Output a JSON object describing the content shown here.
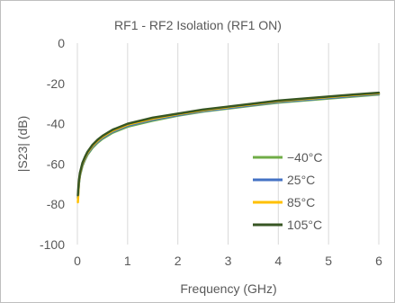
{
  "chart_data": {
    "type": "line",
    "title": "RF1 - RF2 Isolation (RF1 ON)",
    "xlabel": "Frequency (GHz)",
    "ylabel": "|S23| (dB)",
    "xlim": [
      0,
      6
    ],
    "ylim": [
      -100,
      0
    ],
    "xticks": [
      0,
      1,
      2,
      3,
      4,
      5,
      6
    ],
    "yticks": [
      0,
      -20,
      -40,
      -60,
      -80,
      -100
    ],
    "grid": "vertical",
    "legend_position": "bottom-right-inside",
    "series": [
      {
        "name": "−40°C",
        "color": "#70ad47",
        "x": [
          0.01,
          0.03,
          0.05,
          0.1,
          0.15,
          0.2,
          0.3,
          0.4,
          0.5,
          0.7,
          1.0,
          1.5,
          2.0,
          2.5,
          3.0,
          3.5,
          4.0,
          4.5,
          5.0,
          5.5,
          6.0
        ],
        "y": [
          -77,
          -70,
          -66,
          -61,
          -58,
          -55.5,
          -52,
          -49.5,
          -47.5,
          -44.5,
          -41.5,
          -38.5,
          -36,
          -34,
          -32.5,
          -31,
          -29.5,
          -28.5,
          -27.5,
          -26.5,
          -25.5
        ]
      },
      {
        "name": "25°C",
        "color": "#4472c4",
        "x": [
          0.01,
          0.03,
          0.05,
          0.1,
          0.15,
          0.2,
          0.3,
          0.4,
          0.5,
          0.7,
          1.0,
          1.5,
          2.0,
          2.5,
          3.0,
          3.5,
          4.0,
          4.5,
          5.0,
          5.5,
          6.0
        ],
        "y": [
          -76.5,
          -69.5,
          -65.5,
          -60.5,
          -57.5,
          -55,
          -51.5,
          -49,
          -47,
          -44,
          -41,
          -38,
          -35.7,
          -33.7,
          -32.2,
          -30.7,
          -29.2,
          -28.2,
          -27.2,
          -26.2,
          -25.2
        ]
      },
      {
        "name": "85°C",
        "color": "#ffc000",
        "x": [
          0.01,
          0.03,
          0.05,
          0.1,
          0.15,
          0.2,
          0.3,
          0.4,
          0.5,
          0.7,
          1.0,
          1.5,
          2.0,
          2.5,
          3.0,
          3.5,
          4.0,
          4.5,
          5.0,
          5.5,
          6.0
        ],
        "y": [
          -79,
          -69,
          -65,
          -60,
          -57,
          -54.5,
          -51,
          -48.5,
          -46.5,
          -43.5,
          -40.5,
          -37.5,
          -35.3,
          -33.3,
          -31.8,
          -30.3,
          -28.8,
          -27.8,
          -26.8,
          -25.8,
          -24.9
        ]
      },
      {
        "name": "105°C",
        "color": "#375623",
        "x": [
          0.01,
          0.03,
          0.05,
          0.1,
          0.15,
          0.2,
          0.3,
          0.4,
          0.5,
          0.7,
          1.0,
          1.5,
          2.0,
          2.5,
          3.0,
          3.5,
          4.0,
          4.5,
          5.0,
          5.5,
          6.0
        ],
        "y": [
          -75.5,
          -68.5,
          -64.5,
          -59.5,
          -56.5,
          -54,
          -50.5,
          -48,
          -46,
          -43,
          -40,
          -37,
          -35,
          -33,
          -31.5,
          -30,
          -28.5,
          -27.5,
          -26.5,
          -25.5,
          -24.6
        ]
      }
    ]
  }
}
